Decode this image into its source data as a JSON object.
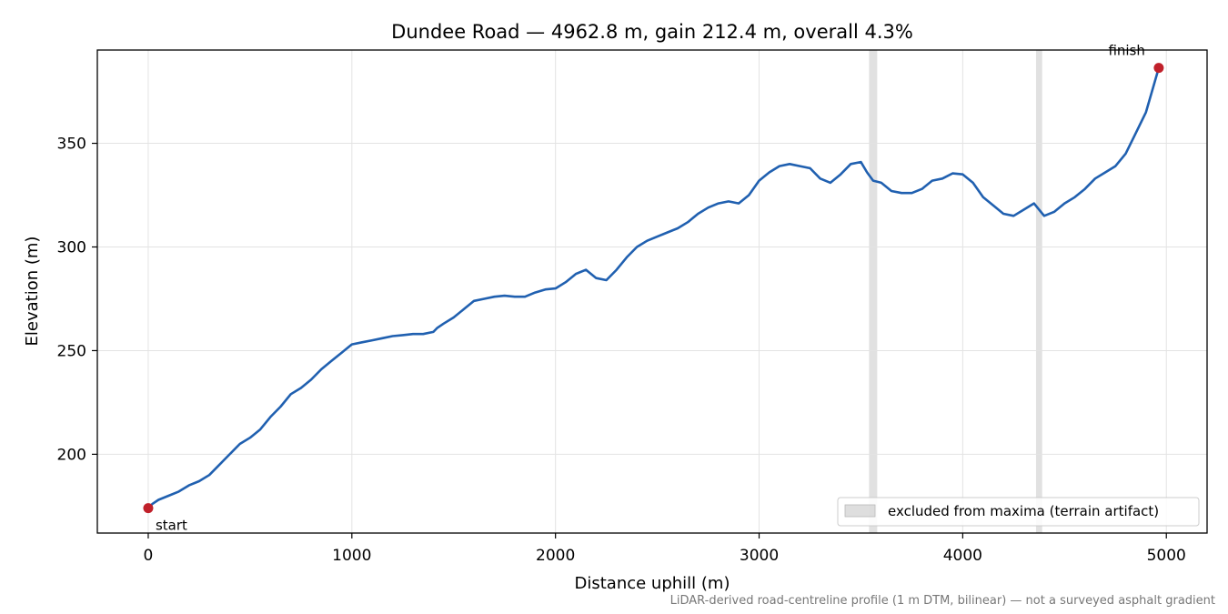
{
  "chart_data": {
    "type": "line",
    "title": "Dundee Road — 4962.8 m, gain 212.4 m, overall 4.3%",
    "xlabel": "Distance uphill (m)",
    "ylabel": "Elevation (m)",
    "xlim": [
      -250,
      5200
    ],
    "ylim": [
      162,
      395
    ],
    "xticks": [
      0,
      1000,
      2000,
      3000,
      4000,
      5000
    ],
    "yticks": [
      200,
      250,
      300,
      350
    ],
    "grid": true,
    "legend_position": "lower-right",
    "colors": {
      "line": "#2060b0",
      "endpoints": "#c0202a",
      "excluded_band": "#c8c8c8",
      "grid": "#e3e3e3",
      "footnote": "#777777"
    },
    "series": [
      {
        "values": [
          [
            0,
            174
          ],
          [
            20,
            176
          ],
          [
            50,
            178
          ],
          [
            100,
            180
          ],
          [
            150,
            182
          ],
          [
            200,
            185
          ],
          [
            250,
            187
          ],
          [
            300,
            190
          ],
          [
            350,
            195
          ],
          [
            400,
            200
          ],
          [
            450,
            205
          ],
          [
            500,
            208
          ],
          [
            550,
            212
          ],
          [
            600,
            218
          ],
          [
            650,
            223
          ],
          [
            700,
            229
          ],
          [
            750,
            232
          ],
          [
            800,
            236
          ],
          [
            850,
            241
          ],
          [
            900,
            245
          ],
          [
            950,
            249
          ],
          [
            1000,
            253
          ],
          [
            1050,
            254
          ],
          [
            1100,
            255
          ],
          [
            1150,
            256
          ],
          [
            1200,
            257
          ],
          [
            1250,
            257.5
          ],
          [
            1300,
            258
          ],
          [
            1350,
            258
          ],
          [
            1400,
            259
          ],
          [
            1420,
            261
          ],
          [
            1450,
            263
          ],
          [
            1500,
            266
          ],
          [
            1550,
            270
          ],
          [
            1600,
            274
          ],
          [
            1650,
            275
          ],
          [
            1700,
            276
          ],
          [
            1750,
            276.5
          ],
          [
            1800,
            276
          ],
          [
            1850,
            276
          ],
          [
            1900,
            278
          ],
          [
            1950,
            279.5
          ],
          [
            2000,
            280
          ],
          [
            2050,
            283
          ],
          [
            2100,
            287
          ],
          [
            2150,
            289
          ],
          [
            2200,
            285
          ],
          [
            2250,
            284
          ],
          [
            2300,
            289
          ],
          [
            2350,
            295
          ],
          [
            2400,
            300
          ],
          [
            2450,
            303
          ],
          [
            2500,
            305
          ],
          [
            2550,
            307
          ],
          [
            2600,
            309
          ],
          [
            2650,
            312
          ],
          [
            2700,
            316
          ],
          [
            2750,
            319
          ],
          [
            2800,
            321
          ],
          [
            2850,
            322
          ],
          [
            2900,
            321
          ],
          [
            2950,
            325
          ],
          [
            3000,
            332
          ],
          [
            3050,
            336
          ],
          [
            3100,
            339
          ],
          [
            3150,
            340
          ],
          [
            3200,
            339
          ],
          [
            3250,
            338
          ],
          [
            3300,
            333
          ],
          [
            3350,
            331
          ],
          [
            3400,
            335
          ],
          [
            3450,
            340
          ],
          [
            3500,
            341
          ],
          [
            3530,
            336
          ],
          [
            3560,
            332
          ],
          [
            3600,
            331
          ],
          [
            3650,
            327
          ],
          [
            3700,
            326
          ],
          [
            3750,
            326
          ],
          [
            3800,
            328
          ],
          [
            3850,
            332
          ],
          [
            3900,
            333
          ],
          [
            3950,
            335.5
          ],
          [
            4000,
            335
          ],
          [
            4050,
            331
          ],
          [
            4100,
            324
          ],
          [
            4150,
            320
          ],
          [
            4200,
            316
          ],
          [
            4250,
            315
          ],
          [
            4300,
            318
          ],
          [
            4350,
            321
          ],
          [
            4400,
            315
          ],
          [
            4450,
            317
          ],
          [
            4500,
            321
          ],
          [
            4550,
            324
          ],
          [
            4600,
            328
          ],
          [
            4650,
            333
          ],
          [
            4700,
            336
          ],
          [
            4750,
            339
          ],
          [
            4800,
            345
          ],
          [
            4850,
            355
          ],
          [
            4900,
            365
          ],
          [
            4962.8,
            386.4
          ]
        ]
      }
    ],
    "excluded_ranges": [
      [
        3540,
        3580
      ],
      [
        4360,
        4390
      ]
    ],
    "endpoints": {
      "start": {
        "x": 0,
        "y": 174,
        "label": "start"
      },
      "finish": {
        "x": 4962.8,
        "y": 386.4,
        "label": "finish"
      }
    },
    "legend": [
      {
        "label": "excluded from maxima (terrain artifact)"
      }
    ],
    "footnote": "LiDAR-derived road-centreline profile (1 m DTM, bilinear) — not a surveyed asphalt gradient"
  }
}
